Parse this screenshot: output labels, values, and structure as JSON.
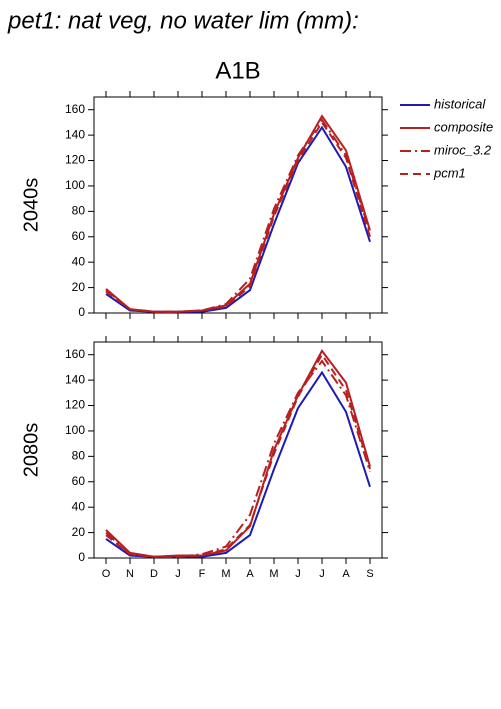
{
  "header": {
    "title": "pet1: nat veg, no water lim (mm):",
    "scenario": "A1B"
  },
  "chart_data": [
    {
      "type": "line",
      "ylabel": "2040s",
      "categories": [
        null,
        null,
        null,
        null,
        null,
        null,
        null,
        null,
        null,
        null,
        null,
        null
      ],
      "ylim": [
        0,
        170
      ],
      "yticks": [
        0,
        20,
        40,
        60,
        80,
        100,
        120,
        140,
        160
      ],
      "legend": "outside-right",
      "series": [
        {
          "name": "historical",
          "color": "#1c1cb4",
          "dash": "solid",
          "values": [
            15,
            2,
            1,
            1,
            1,
            4,
            18,
            70,
            118,
            146,
            115,
            56
          ]
        },
        {
          "name": "composite",
          "color": "#b82020",
          "dash": "solid",
          "values": [
            19,
            3,
            1,
            1,
            2,
            6,
            23,
            78,
            122,
            155,
            128,
            65
          ]
        },
        {
          "name": "miroc_3.2",
          "color": "#b82020",
          "dash": "dashdot",
          "values": [
            18,
            3,
            1,
            1,
            2,
            7,
            27,
            82,
            124,
            152,
            124,
            63
          ]
        },
        {
          "name": "pcm1",
          "color": "#b82020",
          "dash": "dash",
          "values": [
            17,
            3,
            1,
            1,
            2,
            5,
            21,
            76,
            120,
            150,
            122,
            60
          ]
        }
      ]
    },
    {
      "type": "line",
      "ylabel": "2080s",
      "categories": [
        "O",
        "N",
        "D",
        "J",
        "F",
        "M",
        "A",
        "M",
        "J",
        "J",
        "A",
        "S"
      ],
      "ylim": [
        0,
        170
      ],
      "yticks": [
        0,
        20,
        40,
        60,
        80,
        100,
        120,
        140,
        160
      ],
      "series": [
        {
          "color": "#1c1cb4",
          "dash": "solid",
          "values": [
            15,
            2,
            1,
            1,
            1,
            4,
            18,
            70,
            118,
            146,
            115,
            56
          ]
        },
        {
          "color": "#b82020",
          "dash": "solid",
          "values": [
            22,
            4,
            1,
            2,
            2,
            6,
            25,
            85,
            128,
            163,
            138,
            72
          ]
        },
        {
          "color": "#b82020",
          "dash": "dashdot",
          "values": [
            20,
            3,
            1,
            1,
            3,
            9,
            34,
            90,
            130,
            155,
            128,
            68
          ]
        },
        {
          "color": "#b82020",
          "dash": "dash",
          "values": [
            18,
            3,
            1,
            1,
            2,
            7,
            26,
            82,
            127,
            160,
            132,
            70
          ]
        }
      ]
    }
  ]
}
